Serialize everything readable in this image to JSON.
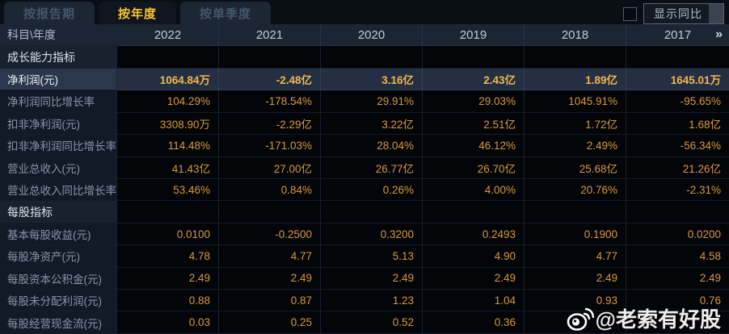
{
  "tabs": [
    {
      "label": "按报告期",
      "active": false
    },
    {
      "label": "按年度",
      "active": true
    },
    {
      "label": "按单季度",
      "active": false
    }
  ],
  "controls": {
    "show_yoy_label": "显示同比",
    "checkbox_checked": false
  },
  "table": {
    "corner_header": "科目\\年度",
    "year_columns": [
      "2022",
      "2021",
      "2020",
      "2019",
      "2018",
      "2017"
    ],
    "more_icon": "»",
    "rows": [
      {
        "type": "section",
        "label": "成长能力指标",
        "values": [
          "",
          "",
          "",
          "",
          "",
          ""
        ]
      },
      {
        "type": "data",
        "highlight": true,
        "label": "净利润(元)",
        "values": [
          "1064.84万",
          "-2.48亿",
          "3.16亿",
          "2.43亿",
          "1.89亿",
          "1645.01万"
        ]
      },
      {
        "type": "data",
        "label": "净利润同比增长率",
        "values": [
          "104.29%",
          "-178.54%",
          "29.91%",
          "29.03%",
          "1045.91%",
          "-95.65%"
        ]
      },
      {
        "type": "data",
        "label": "扣非净利润(元)",
        "values": [
          "3308.90万",
          "-2.29亿",
          "3.22亿",
          "2.51亿",
          "1.72亿",
          "1.68亿"
        ]
      },
      {
        "type": "data",
        "label": "扣非净利润同比增长率",
        "values": [
          "114.48%",
          "-171.03%",
          "28.04%",
          "46.12%",
          "2.49%",
          "-56.34%"
        ]
      },
      {
        "type": "data",
        "label": "营业总收入(元)",
        "values": [
          "41.43亿",
          "27.00亿",
          "26.77亿",
          "26.70亿",
          "25.68亿",
          "21.26亿"
        ]
      },
      {
        "type": "data",
        "label": "营业总收入同比增长率",
        "values": [
          "53.46%",
          "0.84%",
          "0.26%",
          "4.00%",
          "20.76%",
          "-2.31%"
        ]
      },
      {
        "type": "section",
        "label": "每股指标",
        "values": [
          "",
          "",
          "",
          "",
          "",
          ""
        ]
      },
      {
        "type": "data",
        "label": "基本每股收益(元)",
        "values": [
          "0.0100",
          "-0.2500",
          "0.3200",
          "0.2493",
          "0.1900",
          "0.0200"
        ]
      },
      {
        "type": "data",
        "label": "每股净资产(元)",
        "values": [
          "4.78",
          "4.77",
          "5.13",
          "4.90",
          "4.77",
          "4.58"
        ]
      },
      {
        "type": "data",
        "label": "每股资本公积金(元)",
        "values": [
          "2.49",
          "2.49",
          "2.49",
          "2.49",
          "2.49",
          "2.49"
        ]
      },
      {
        "type": "data",
        "label": "每股未分配利润(元)",
        "values": [
          "0.88",
          "0.87",
          "1.23",
          "1.04",
          "0.93",
          "0.76"
        ]
      },
      {
        "type": "data",
        "label": "每股经营现金流(元)",
        "values": [
          "0.03",
          "0.25",
          "0.52",
          "0.36",
          "",
          ""
        ]
      }
    ]
  },
  "watermark": {
    "icon": "weibo-icon",
    "text": "@老索有好股"
  },
  "colors": {
    "accent_gold": "#f7c52d",
    "value_orange": "#d9993c",
    "highlight_row_bg": "#242f43",
    "header_bg": "#1b2533",
    "page_bg": "#0a0e15"
  }
}
